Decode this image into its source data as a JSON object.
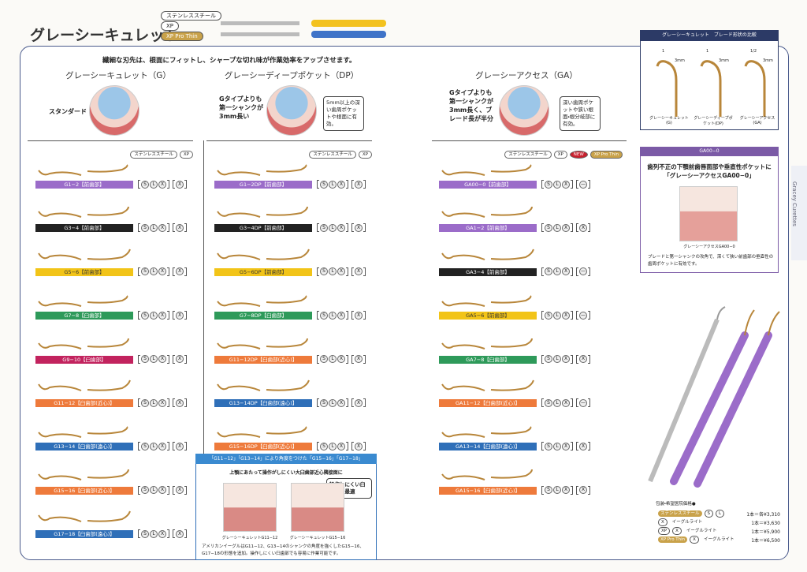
{
  "header": {
    "title": "グレーシーキュレット",
    "badges": [
      "ステンレススチール",
      "XP",
      "XP Pro Thin"
    ]
  },
  "intro": "繊細な刃先は、根面にフィットし、シャープな切れ味が作業効率をアップさせます。",
  "columns": [
    {
      "heading": "グレーシーキュレット（G）",
      "description": "スタンダード",
      "tags": [
        "ステンレススチール",
        "XP"
      ],
      "items": [
        {
          "label": "G1−2【前歯部】",
          "color": "#9b6cc9",
          "options": [
            "S",
            "L",
            "X",
            "X"
          ]
        },
        {
          "label": "G3−4【前歯部】",
          "color": "#222222",
          "options": [
            "S",
            "L",
            "X",
            "X"
          ]
        },
        {
          "label": "G5−6【前歯部】",
          "color": "#f2c418",
          "options": [
            "S",
            "L",
            "X",
            "X"
          ]
        },
        {
          "label": "G7−8【臼歯部】",
          "color": "#2e9a5a",
          "options": [
            "S",
            "L",
            "X",
            "X"
          ]
        },
        {
          "label": "G9−10【臼歯部】",
          "color": "#c2235e",
          "options": [
            "S",
            "L",
            "X",
            "X"
          ]
        },
        {
          "label": "G11−12【臼歯部(近心)】",
          "color": "#ee7a3b",
          "options": [
            "S",
            "L",
            "X",
            "X"
          ]
        },
        {
          "label": "G13−14【臼歯部(遠心)】",
          "color": "#2f6fb8",
          "options": [
            "S",
            "L",
            "X",
            "X"
          ]
        },
        {
          "label": "G15−16【臼歯部(近心)】",
          "color": "#ee7a3b",
          "options": [
            "S",
            "L",
            "X",
            "X"
          ]
        },
        {
          "label": "G17−18【臼歯部(遠心)】",
          "color": "#2f6fb8",
          "options": [
            "S",
            "L",
            "X",
            "X"
          ]
        }
      ]
    },
    {
      "heading": "グレーシーディープポケット（DP）",
      "description": "Gタイプよりも第一シャンクが3mm長い",
      "callout": "5mm以上の深い歯周ポケットや根面に有効。",
      "tags": [
        "ステンレススチール",
        "XP"
      ],
      "items": [
        {
          "label": "G1−2DP【前歯部】",
          "color": "#9b6cc9",
          "options": [
            "S",
            "L",
            "X",
            "X"
          ]
        },
        {
          "label": "G3−4DP【前歯部】",
          "color": "#222222",
          "options": [
            "S",
            "L",
            "X",
            "X"
          ]
        },
        {
          "label": "G5−6DP【前歯部】",
          "color": "#f2c418",
          "options": [
            "S",
            "L",
            "X",
            "X"
          ]
        },
        {
          "label": "G7−8DP【臼歯部】",
          "color": "#2e9a5a",
          "options": [
            "S",
            "L",
            "X",
            "X"
          ]
        },
        {
          "label": "G11−12DP【臼歯部(近心)】",
          "color": "#ee7a3b",
          "options": [
            "S",
            "L",
            "X",
            "X"
          ]
        },
        {
          "label": "G13−14DP【臼歯部(遠心)】",
          "color": "#2f6fb8",
          "options": [
            "S",
            "L",
            "X",
            "X"
          ]
        },
        {
          "label": "G15−16DP【臼歯部(近心)】",
          "color": "#ee7a3b",
          "options": [
            "S",
            "L",
            "X",
            "X"
          ]
        }
      ]
    },
    {
      "heading": "グレーシーアクセス（GA）",
      "description": "Gタイプよりも第一シャンクが3mm長く、ブレード長が半分",
      "callout": "深い歯周ポケットや狭い根面・根分岐部に有効。",
      "tags": [
        "ステンレススチール",
        "XP",
        "NEW",
        "XP Pro Thin"
      ],
      "items": [
        {
          "label": "GA00−0【前歯部】",
          "color": "#9b6cc9",
          "options": [
            "S",
            "L",
            "X",
            "—"
          ]
        },
        {
          "label": "GA1−2【前歯部】",
          "color": "#9b6cc9",
          "options": [
            "S",
            "L",
            "X",
            "X"
          ]
        },
        {
          "label": "GA3−4【前歯部】",
          "color": "#222222",
          "options": [
            "S",
            "L",
            "X",
            "—"
          ]
        },
        {
          "label": "GA5−6【前歯部】",
          "color": "#f2c418",
          "options": [
            "S",
            "L",
            "X",
            "—"
          ]
        },
        {
          "label": "GA7−8【臼歯部】",
          "color": "#2e9a5a",
          "options": [
            "S",
            "L",
            "X",
            "X"
          ]
        },
        {
          "label": "GA11−12【臼歯部(近心)】",
          "color": "#ee7a3b",
          "options": [
            "S",
            "L",
            "X",
            "—"
          ]
        },
        {
          "label": "GA13−14【臼歯部(遠心)】",
          "color": "#2f6fb8",
          "options": [
            "S",
            "L",
            "X",
            "X"
          ]
        },
        {
          "label": "GA15−16【臼歯部(近心)】",
          "color": "#ee7a3b",
          "options": [
            "S",
            "L",
            "X",
            "X"
          ]
        }
      ]
    }
  ],
  "comparison": {
    "title": "グレーシーキュレット　ブレード形状の比較",
    "items": [
      {
        "name": "グレーシーキュレット(G)",
        "dims": [
          "1",
          "3mm"
        ]
      },
      {
        "name": "グレーシーディープポケット(DP)",
        "dims": [
          "1",
          "3mm"
        ]
      },
      {
        "name": "グレーシーアクセス(GA)",
        "dims": [
          "1/2",
          "3mm"
        ]
      }
    ]
  },
  "feature": {
    "title": "GA00−0",
    "heading": "歯列不正の下顎前歯唇面部や垂直性ポケットに「グレーシーアクセスGA00−0」",
    "caption": "グレーシーアクセスGA00−0",
    "text": "ブレードと第一シャンクの攻角で、深くて狭い前歯部の垂直性の歯周ポケットに有効です。"
  },
  "angle_box": {
    "title": "「G11−12」「G13−14」により角度をつけた「G15−16」「G17−18」",
    "subtitle": "上顎にあたって操作がしにくい大臼歯部近心隣接面に",
    "callout": "操作しにくい臼歯部に最適",
    "captions": [
      "グレーシーキュレットG11−12",
      "グレーシーキュレットG15−16"
    ],
    "text": "アメリカンイーグルはG11−12、G13−14のシャンクの角度を強くしたG15−16、G17−18の形態を追加。操作しにくい臼歯部でも容易に作業可能です。"
  },
  "price": {
    "title": "包装・希望医院価格●",
    "rows": [
      {
        "parts": [
          "ステンレススチール",
          "S",
          "L"
        ],
        "text": "1本＝各¥3,310"
      },
      {
        "parts": [
          "X",
          "イーグルライト"
        ],
        "text": "1本＝¥3,630"
      },
      {
        "parts": [
          "XP",
          "X",
          "イーグルライト"
        ],
        "text": "1本＝¥5,900"
      },
      {
        "parts": [
          "XP Pro Thin",
          "X",
          "イーグルライト"
        ],
        "text": "1本＝¥6,500"
      }
    ]
  },
  "side_tab": "Gracey Curettes"
}
